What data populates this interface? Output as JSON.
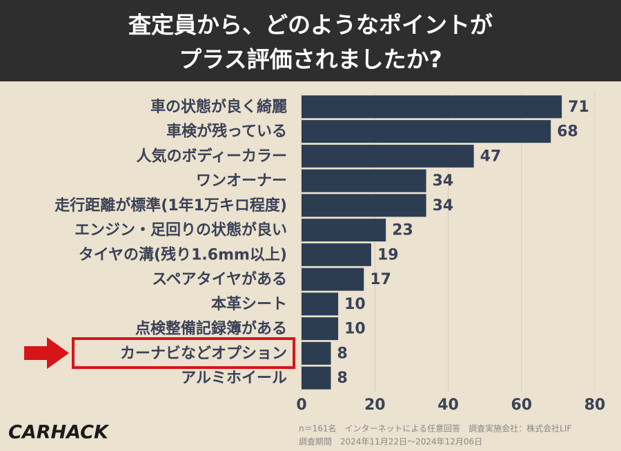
{
  "chart_data": {
    "type": "barh",
    "title": [
      "査定員から、どのようなポイントが",
      "プラス評価されましたか?"
    ],
    "categories": [
      "車の状態が良く綺麗",
      "車検が残っている",
      "人気のボディーカラー",
      "ワンオーナー",
      "走行距離が標準(1年1万キロ程度)",
      "エンジン・足回りの状態が良い",
      "タイヤの溝(残り1.6mm以上)",
      "スペアタイヤがある",
      "本革シート",
      "点検整備記録簿がある",
      "カーナビなどオプション",
      "アルミホイール"
    ],
    "values": [
      71,
      68,
      47,
      34,
      34,
      23,
      19,
      17,
      10,
      10,
      8,
      8
    ],
    "color": "#2c3d52",
    "xlim": [
      0,
      80
    ],
    "xticks": [
      0,
      20,
      40,
      60,
      80
    ],
    "grid": true,
    "brand": "CARHACK",
    "notes": [
      "n＝161名　インターネットによる任意回答　調査実施会社：株式会社LIF",
      "調査期間　2024年11月22日～2024年12月06日"
    ]
  }
}
